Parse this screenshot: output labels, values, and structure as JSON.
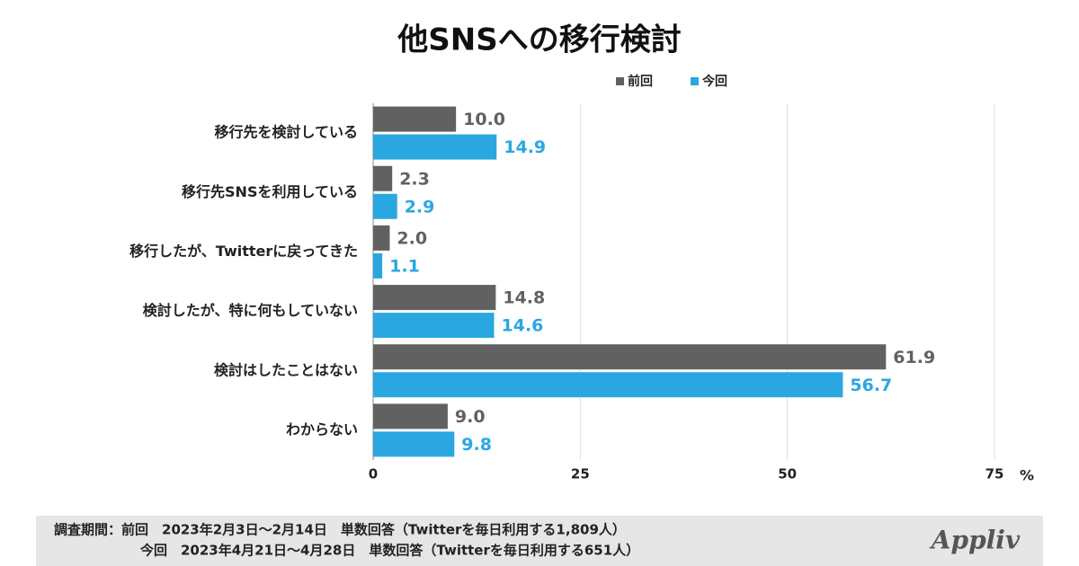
{
  "chart_data": {
    "type": "hbar",
    "title": "他SNSへの移行検討",
    "categories": [
      "移行先を検討している",
      "移行先SNSを利用している",
      "移行したが、Twitterに戻ってきた",
      "検討したが、特に何もしていない",
      "検討はしたことはない",
      "わからない"
    ],
    "series": [
      {
        "name": "前回",
        "color": "#616161",
        "values": [
          10.0,
          2.3,
          2.0,
          14.8,
          61.9,
          9.0
        ],
        "value_labels": [
          "10.0",
          "2.3",
          "2.0",
          "14.8",
          "61.9",
          "9.0"
        ]
      },
      {
        "name": "今回",
        "color": "#2aa7e1",
        "values": [
          14.9,
          2.9,
          1.1,
          14.6,
          56.7,
          9.8
        ],
        "value_labels": [
          "14.9",
          "2.9",
          "1.1",
          "14.6",
          "56.7",
          "9.8"
        ]
      }
    ],
    "xlim": [
      0,
      75
    ],
    "xticks": [
      0,
      25,
      50,
      75
    ],
    "x_unit": "%",
    "grid": true,
    "legend": "top-right"
  },
  "footer": {
    "lines": [
      "調査期間：前回　2023年2月3日～2月14日　単数回答（Twitterを毎日利用する1,809人）",
      "今回　2023年4月21日～4月28日　単数回答（Twitterを毎日利用する651人）"
    ],
    "logo": "Appliv"
  }
}
